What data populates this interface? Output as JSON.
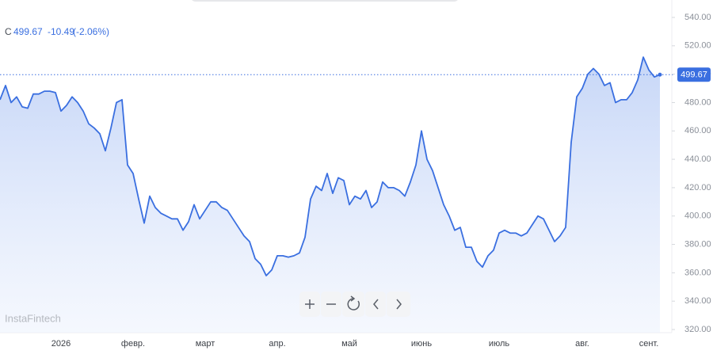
{
  "chart_data": {
    "type": "line",
    "header": {
      "symbol": "C",
      "last": "499.67",
      "change": "-10.49",
      "change_pct": "(-2.06%)"
    },
    "watermark": "InstaFintech",
    "color": "#3a6fe0",
    "categories": [
      null,
      null,
      null,
      null,
      null,
      null,
      null,
      null,
      null,
      null,
      null,
      "2026",
      null,
      null,
      null,
      null,
      null,
      null,
      null,
      null,
      null,
      null,
      null,
      null,
      "февр.",
      null,
      null,
      null,
      null,
      null,
      null,
      null,
      null,
      null,
      null,
      null,
      null,
      "март",
      null,
      null,
      null,
      null,
      null,
      null,
      null,
      null,
      null,
      null,
      null,
      null,
      "апр.",
      null,
      null,
      null,
      null,
      null,
      null,
      null,
      null,
      null,
      null,
      null,
      null,
      "май",
      null,
      null,
      null,
      null,
      null,
      null,
      null,
      null,
      null,
      null,
      null,
      null,
      "июнь",
      null,
      null,
      null,
      null,
      null,
      null,
      null,
      null,
      null,
      null,
      null,
      null,
      null,
      "июль",
      null,
      null,
      null,
      null,
      null,
      null,
      null,
      null,
      null,
      null,
      null,
      null,
      null,
      null,
      "авг.",
      null,
      null,
      null,
      null,
      null,
      null,
      null,
      null,
      null,
      null,
      null,
      "сент.",
      null,
      null
    ],
    "values": [
      482,
      492,
      480,
      484,
      477,
      476,
      486,
      486,
      488,
      488,
      487,
      474,
      478,
      484,
      480,
      474,
      465,
      462,
      458,
      446,
      462,
      480,
      482,
      436,
      430,
      412,
      395,
      414,
      406,
      402,
      400,
      398,
      398,
      390,
      396,
      408,
      398,
      404,
      410,
      410,
      406,
      404,
      398,
      392,
      386,
      382,
      370,
      366,
      358,
      362,
      372,
      372,
      371,
      372,
      374,
      385,
      412,
      421,
      418,
      430,
      416,
      427,
      425,
      408,
      414,
      412,
      418,
      406,
      410,
      424,
      420,
      420,
      418,
      414,
      424,
      436,
      460,
      440,
      432,
      420,
      408,
      400,
      390,
      392,
      378,
      378,
      368,
      364,
      372,
      376,
      388,
      390,
      388,
      388,
      386,
      388,
      394,
      400,
      398,
      390,
      382,
      386,
      392,
      452,
      484,
      490,
      500,
      504,
      500,
      492,
      494,
      480,
      482,
      482,
      487,
      496,
      512,
      503,
      498,
      499.67
    ],
    "ylim": [
      320,
      540
    ],
    "yticks": [
      {
        "value": 320,
        "label": "320.00"
      },
      {
        "value": 340,
        "label": "340.00"
      },
      {
        "value": 360,
        "label": "360.00"
      },
      {
        "value": 380,
        "label": "380.00"
      },
      {
        "value": 400,
        "label": "400.00"
      },
      {
        "value": 420,
        "label": "420.00"
      },
      {
        "value": 440,
        "label": "440.00"
      },
      {
        "value": 460,
        "label": "460.00"
      },
      {
        "value": 480,
        "label": "480.00"
      },
      {
        "value": 500,
        "label": "500.00"
      },
      {
        "value": 520,
        "label": "520.00"
      },
      {
        "value": 540,
        "label": "540.00"
      }
    ],
    "grid": false
  }
}
